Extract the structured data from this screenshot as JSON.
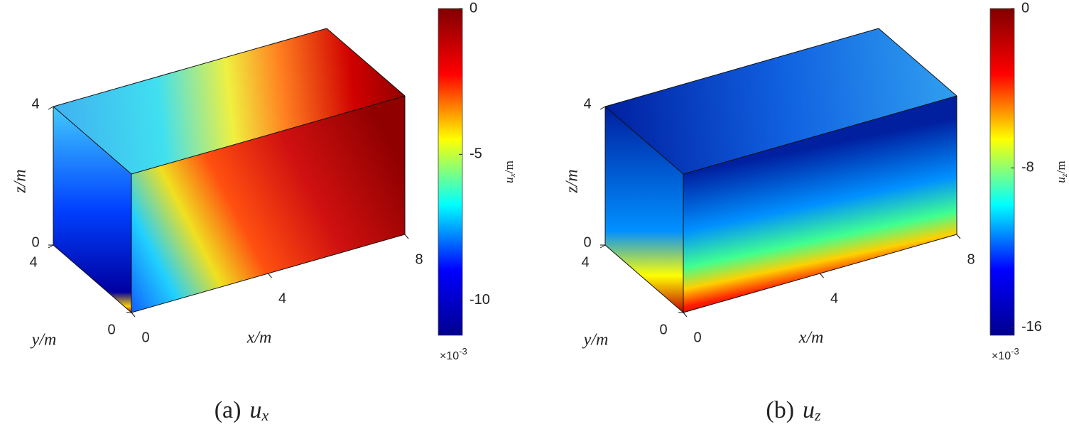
{
  "chart_data": [
    {
      "type": "surface3d",
      "xlabel": "x/m",
      "ylabel": "y/m",
      "zlabel": "z/m",
      "xlim": [
        0,
        8
      ],
      "ylim": [
        0,
        4
      ],
      "zlim": [
        0,
        4
      ],
      "xticks": [
        0,
        4,
        8
      ],
      "yticks": [
        0,
        4
      ],
      "zticks": [
        0,
        4
      ],
      "colormap": "jet",
      "clim": [
        -11.2,
        0
      ],
      "cticks": [
        -10,
        -5,
        0
      ],
      "colorbar_label_symbol": "u",
      "colorbar_label_subscript": "x",
      "colorbar_label_unit": "/m",
      "colorbar_exponent_base": "×10",
      "colorbar_exponent_power": "-3",
      "caption_tag": "(a)",
      "caption_symbol": "u",
      "caption_subscript": "x"
    },
    {
      "type": "surface3d",
      "xlabel": "x/m",
      "ylabel": "y/m",
      "zlabel": "z/m",
      "xlim": [
        0,
        8
      ],
      "ylim": [
        0,
        4
      ],
      "zlim": [
        0,
        4
      ],
      "xticks": [
        0,
        4,
        8
      ],
      "yticks": [
        0,
        4
      ],
      "zticks": [
        0,
        4
      ],
      "colormap": "jet",
      "clim": [
        -16.4,
        0
      ],
      "cticks": [
        -16,
        -8,
        0
      ],
      "colorbar_label_symbol": "u",
      "colorbar_label_subscript": "z",
      "colorbar_label_unit": "/m",
      "colorbar_exponent_base": "×10",
      "colorbar_exponent_power": "-3",
      "caption_tag": "(b)",
      "caption_symbol": "u",
      "caption_subscript": "z"
    }
  ]
}
